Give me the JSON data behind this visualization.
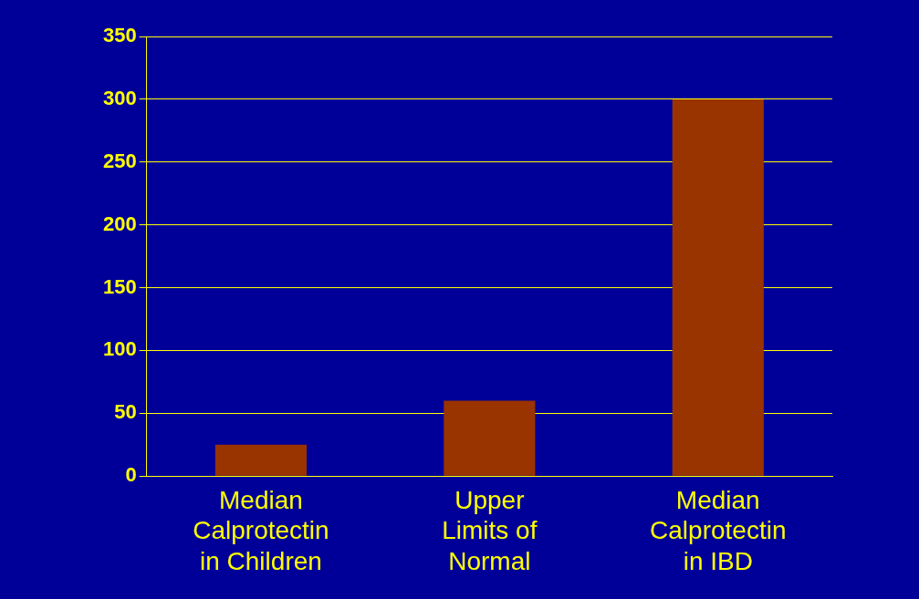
{
  "chart_data": {
    "type": "bar",
    "categories": [
      "Median Calprotectin in Children",
      "Upper Limits of Normal",
      "Median Calprotectin in IBD"
    ],
    "values": [
      25,
      60,
      300
    ],
    "color": "#993300",
    "ylim": [
      0,
      350
    ],
    "yticks": [
      0,
      50,
      100,
      150,
      200,
      250,
      300,
      350
    ],
    "grid": "y",
    "legend": false
  }
}
